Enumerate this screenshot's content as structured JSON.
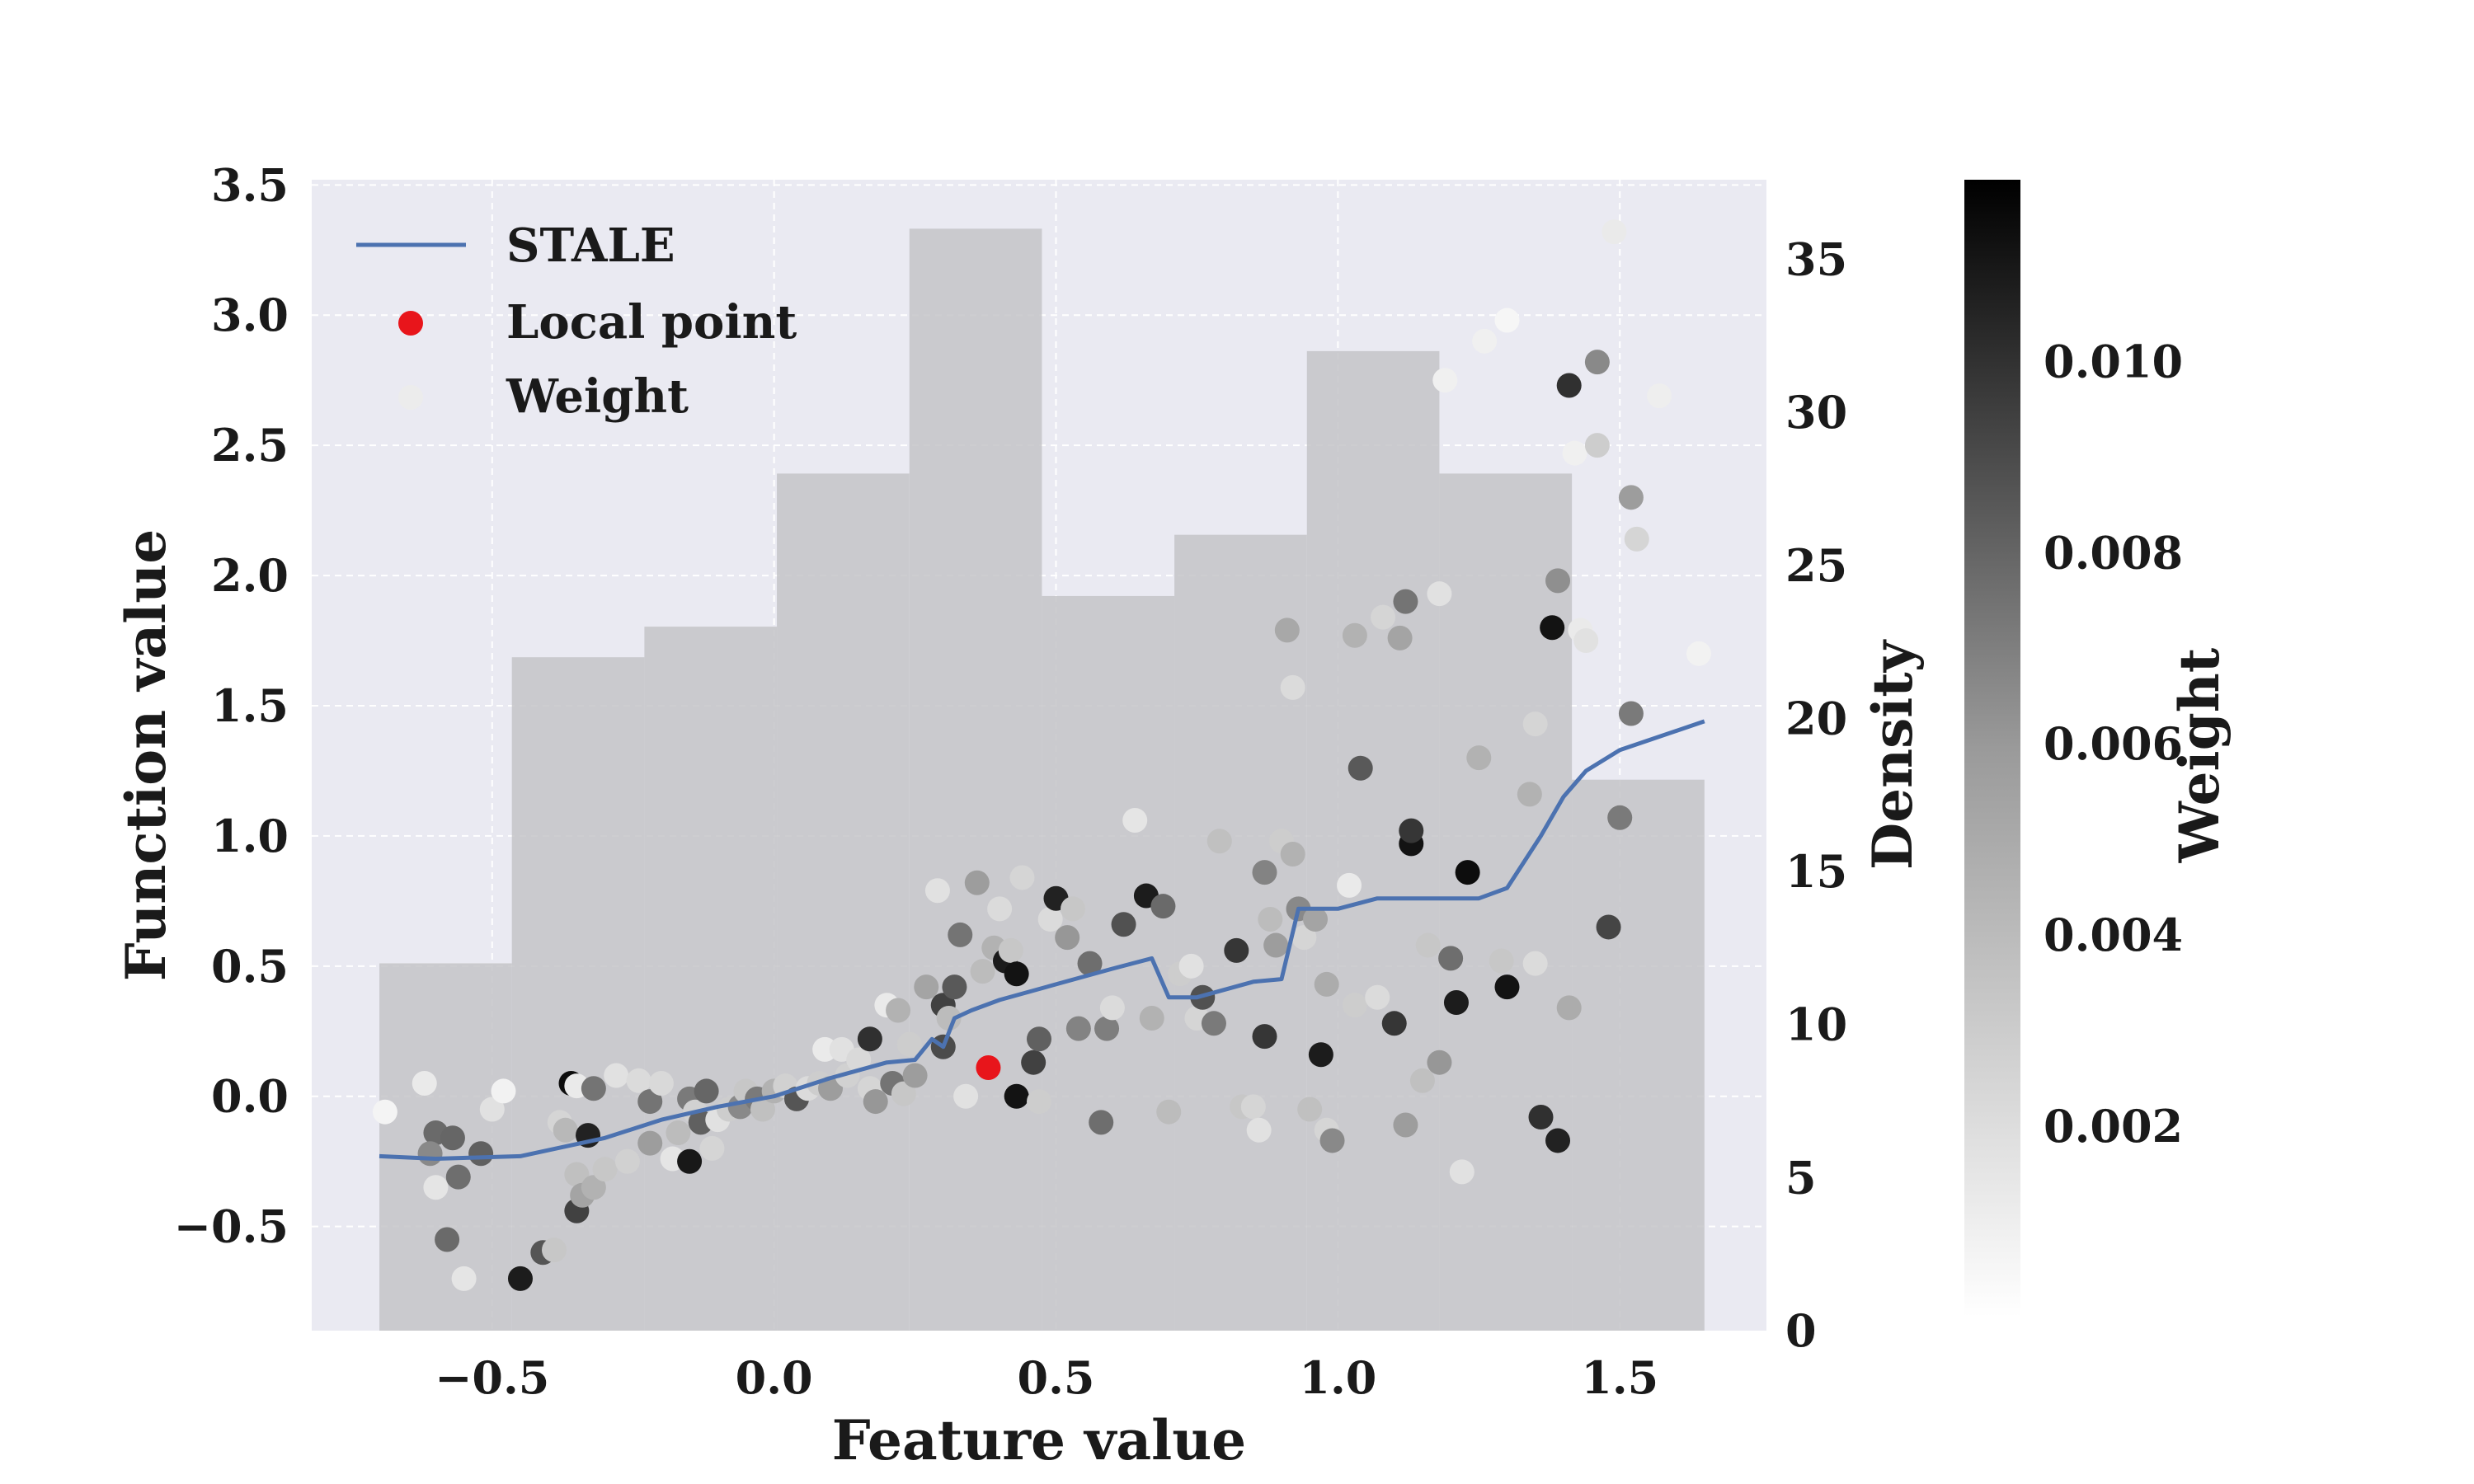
{
  "chart_data": {
    "type": "scatter",
    "xlabel": "Feature value",
    "ylabel": "Function value",
    "y2label": "Density",
    "colorbar_label": "Weight",
    "xlim": [
      -0.82,
      1.76
    ],
    "ylim": [
      -0.9,
      3.52
    ],
    "y2lim": [
      0,
      37.6
    ],
    "colorbar_range": [
      0,
      0.0119
    ],
    "grid": true,
    "legend_position": "top-left",
    "x_ticks": [
      -0.5,
      0.0,
      0.5,
      1.0,
      1.5
    ],
    "x_tick_labels": [
      "−0.5",
      "0.0",
      "0.5",
      "1.0",
      "1.5"
    ],
    "y_ticks": [
      -0.5,
      0.0,
      0.5,
      1.0,
      1.5,
      2.0,
      2.5,
      3.0,
      3.5
    ],
    "y_tick_labels": [
      "−0.5",
      "0.0",
      "0.5",
      "1.0",
      "1.5",
      "2.0",
      "2.5",
      "3.0",
      "3.5"
    ],
    "y2_ticks": [
      0,
      5,
      10,
      15,
      20,
      25,
      30,
      35
    ],
    "y2_tick_labels": [
      "0",
      "5",
      "10",
      "15",
      "20",
      "25",
      "30",
      "35"
    ],
    "colorbar_ticks": [
      0.002,
      0.004,
      0.006,
      0.008,
      0.01
    ],
    "colorbar_tick_labels": [
      "0.002",
      "0.004",
      "0.006",
      "0.008",
      "0.010"
    ],
    "legend": [
      {
        "kind": "line",
        "label": "STALE",
        "color": "#4c72b0"
      },
      {
        "kind": "dot",
        "label": "Local point",
        "color": "#e8151b"
      },
      {
        "kind": "dot",
        "label": "Weight",
        "color": "#ececec"
      }
    ],
    "histogram": {
      "color": "#c4c4c8",
      "bin_edges": [
        -0.7,
        -0.465,
        -0.23,
        0.005,
        0.24,
        0.475,
        0.71,
        0.945,
        1.18,
        1.415,
        1.65
      ],
      "counts": [
        12,
        22,
        23,
        28,
        36,
        24,
        26,
        32,
        28,
        18
      ]
    },
    "series": [
      {
        "name": "STALE",
        "color": "#4c72b0",
        "x": [
          -0.7,
          -0.6,
          -0.45,
          -0.3,
          -0.2,
          -0.1,
          0.0,
          0.1,
          0.2,
          0.25,
          0.28,
          0.3,
          0.32,
          0.35,
          0.4,
          0.5,
          0.6,
          0.67,
          0.7,
          0.75,
          0.85,
          0.9,
          0.93,
          1.0,
          1.07,
          1.15,
          1.2,
          1.25,
          1.3,
          1.36,
          1.4,
          1.44,
          1.5,
          1.65
        ],
        "y": [
          -0.23,
          -0.24,
          -0.23,
          -0.16,
          -0.09,
          -0.04,
          0.0,
          0.07,
          0.13,
          0.14,
          0.22,
          0.19,
          0.3,
          0.33,
          0.37,
          0.43,
          0.49,
          0.53,
          0.38,
          0.38,
          0.44,
          0.45,
          0.72,
          0.72,
          0.76,
          0.76,
          0.76,
          0.76,
          0.8,
          1.0,
          1.15,
          1.25,
          1.33,
          1.44
        ]
      }
    ],
    "local_point": {
      "x": 0.38,
      "y": 0.11,
      "color": "#e8151b"
    },
    "points": [
      {
        "x": -0.69,
        "y": -0.06,
        "w": 0.0003
      },
      {
        "x": -0.62,
        "y": 0.05,
        "w": 0.0008
      },
      {
        "x": -0.6,
        "y": -0.14,
        "w": 0.007
      },
      {
        "x": -0.61,
        "y": -0.22,
        "w": 0.0055
      },
      {
        "x": -0.6,
        "y": -0.35,
        "w": 0.001
      },
      {
        "x": -0.58,
        "y": -0.55,
        "w": 0.007
      },
      {
        "x": -0.57,
        "y": -0.16,
        "w": 0.0072
      },
      {
        "x": -0.56,
        "y": -0.31,
        "w": 0.0068
      },
      {
        "x": -0.55,
        "y": -0.7,
        "w": 0.001
      },
      {
        "x": -0.52,
        "y": -0.22,
        "w": 0.0075
      },
      {
        "x": -0.5,
        "y": -0.05,
        "w": 0.0012
      },
      {
        "x": -0.48,
        "y": 0.02,
        "w": 0.0004
      },
      {
        "x": -0.45,
        "y": -0.7,
        "w": 0.0108
      },
      {
        "x": -0.41,
        "y": -0.6,
        "w": 0.008
      },
      {
        "x": -0.39,
        "y": -0.59,
        "w": 0.0025
      },
      {
        "x": -0.38,
        "y": -0.1,
        "w": 0.0018
      },
      {
        "x": -0.37,
        "y": -0.13,
        "w": 0.0032
      },
      {
        "x": -0.36,
        "y": 0.05,
        "w": 0.0115
      },
      {
        "x": -0.35,
        "y": 0.04,
        "w": 0.0008
      },
      {
        "x": -0.35,
        "y": -0.3,
        "w": 0.0028
      },
      {
        "x": -0.35,
        "y": -0.44,
        "w": 0.009
      },
      {
        "x": -0.34,
        "y": -0.38,
        "w": 0.0042
      },
      {
        "x": -0.33,
        "y": -0.15,
        "w": 0.0105
      },
      {
        "x": -0.32,
        "y": 0.03,
        "w": 0.0065
      },
      {
        "x": -0.32,
        "y": -0.35,
        "w": 0.0035
      },
      {
        "x": -0.3,
        "y": -0.28,
        "w": 0.0025
      },
      {
        "x": -0.28,
        "y": 0.08,
        "w": 0.0012
      },
      {
        "x": -0.26,
        "y": -0.25,
        "w": 0.002
      },
      {
        "x": -0.24,
        "y": 0.06,
        "w": 0.0015
      },
      {
        "x": -0.22,
        "y": -0.02,
        "w": 0.0065
      },
      {
        "x": -0.22,
        "y": -0.18,
        "w": 0.0045
      },
      {
        "x": -0.2,
        "y": 0.05,
        "w": 0.0016
      },
      {
        "x": -0.18,
        "y": -0.24,
        "w": 0.001
      },
      {
        "x": -0.17,
        "y": -0.14,
        "w": 0.003
      },
      {
        "x": -0.15,
        "y": -0.01,
        "w": 0.0062
      },
      {
        "x": -0.15,
        "y": -0.25,
        "w": 0.011
      },
      {
        "x": -0.14,
        "y": -0.06,
        "w": 0.002
      },
      {
        "x": -0.13,
        "y": -0.1,
        "w": 0.0075
      },
      {
        "x": -0.12,
        "y": 0.02,
        "w": 0.0072
      },
      {
        "x": -0.11,
        "y": -0.2,
        "w": 0.0018
      },
      {
        "x": -0.1,
        "y": -0.09,
        "w": 0.0012
      },
      {
        "x": -0.08,
        "y": -0.05,
        "w": 0.0022
      },
      {
        "x": -0.06,
        "y": -0.04,
        "w": 0.0055
      },
      {
        "x": -0.05,
        "y": 0.02,
        "w": 0.0025
      },
      {
        "x": -0.03,
        "y": -0.01,
        "w": 0.0062
      },
      {
        "x": -0.02,
        "y": -0.05,
        "w": 0.0028
      },
      {
        "x": 0.0,
        "y": 0.02,
        "w": 0.0035
      },
      {
        "x": 0.02,
        "y": 0.04,
        "w": 0.002
      },
      {
        "x": 0.04,
        "y": -0.01,
        "w": 0.008
      },
      {
        "x": 0.06,
        "y": 0.03,
        "w": 0.0015
      },
      {
        "x": 0.08,
        "y": 0.05,
        "w": 0.0022
      },
      {
        "x": 0.09,
        "y": 0.18,
        "w": 0.0008
      },
      {
        "x": 0.1,
        "y": 0.03,
        "w": 0.0045
      },
      {
        "x": 0.12,
        "y": 0.18,
        "w": 0.0012
      },
      {
        "x": 0.13,
        "y": 0.08,
        "w": 0.002
      },
      {
        "x": 0.15,
        "y": 0.14,
        "w": 0.0016
      },
      {
        "x": 0.17,
        "y": 0.22,
        "w": 0.0098
      },
      {
        "x": 0.17,
        "y": 0.03,
        "w": 0.0018
      },
      {
        "x": 0.18,
        "y": -0.02,
        "w": 0.0048
      },
      {
        "x": 0.2,
        "y": 0.35,
        "w": 0.0008
      },
      {
        "x": 0.21,
        "y": 0.05,
        "w": 0.0065
      },
      {
        "x": 0.22,
        "y": 0.33,
        "w": 0.0035
      },
      {
        "x": 0.23,
        "y": 0.01,
        "w": 0.0025
      },
      {
        "x": 0.24,
        "y": 0.2,
        "w": 0.0022
      },
      {
        "x": 0.25,
        "y": 0.08,
        "w": 0.0045
      },
      {
        "x": 0.27,
        "y": 0.42,
        "w": 0.0042
      },
      {
        "x": 0.29,
        "y": 0.79,
        "w": 0.0012
      },
      {
        "x": 0.3,
        "y": 0.35,
        "w": 0.009
      },
      {
        "x": 0.3,
        "y": 0.19,
        "w": 0.0085
      },
      {
        "x": 0.31,
        "y": 0.3,
        "w": 0.003
      },
      {
        "x": 0.32,
        "y": 0.42,
        "w": 0.0078
      },
      {
        "x": 0.33,
        "y": 0.62,
        "w": 0.0065
      },
      {
        "x": 0.34,
        "y": 0.0,
        "w": 0.0012
      },
      {
        "x": 0.36,
        "y": 0.82,
        "w": 0.0045
      },
      {
        "x": 0.37,
        "y": 0.48,
        "w": 0.003
      },
      {
        "x": 0.39,
        "y": 0.57,
        "w": 0.0035
      },
      {
        "x": 0.4,
        "y": 0.72,
        "w": 0.0015
      },
      {
        "x": 0.41,
        "y": 0.52,
        "w": 0.0108
      },
      {
        "x": 0.42,
        "y": 0.56,
        "w": 0.0025
      },
      {
        "x": 0.43,
        "y": 0.47,
        "w": 0.0112
      },
      {
        "x": 0.43,
        "y": 0.0,
        "w": 0.0112
      },
      {
        "x": 0.44,
        "y": 0.84,
        "w": 0.0018
      },
      {
        "x": 0.46,
        "y": 0.13,
        "w": 0.009
      },
      {
        "x": 0.47,
        "y": 0.22,
        "w": 0.0075
      },
      {
        "x": 0.47,
        "y": -0.02,
        "w": 0.0022
      },
      {
        "x": 0.49,
        "y": 0.68,
        "w": 0.0015
      },
      {
        "x": 0.5,
        "y": 0.76,
        "w": 0.0105
      },
      {
        "x": 0.52,
        "y": 0.61,
        "w": 0.0048
      },
      {
        "x": 0.53,
        "y": 0.72,
        "w": 0.0025
      },
      {
        "x": 0.54,
        "y": 0.26,
        "w": 0.0058
      },
      {
        "x": 0.56,
        "y": 0.51,
        "w": 0.0068
      },
      {
        "x": 0.58,
        "y": -0.1,
        "w": 0.0068
      },
      {
        "x": 0.59,
        "y": 0.26,
        "w": 0.006
      },
      {
        "x": 0.6,
        "y": 0.34,
        "w": 0.0015
      },
      {
        "x": 0.62,
        "y": 0.66,
        "w": 0.0082
      },
      {
        "x": 0.64,
        "y": 1.06,
        "w": 0.001
      },
      {
        "x": 0.66,
        "y": 0.77,
        "w": 0.0108
      },
      {
        "x": 0.67,
        "y": 0.3,
        "w": 0.0035
      },
      {
        "x": 0.69,
        "y": 0.73,
        "w": 0.007
      },
      {
        "x": 0.7,
        "y": -0.06,
        "w": 0.003
      },
      {
        "x": 0.72,
        "y": 0.47,
        "w": 0.0022
      },
      {
        "x": 0.74,
        "y": 0.5,
        "w": 0.0012
      },
      {
        "x": 0.75,
        "y": 0.3,
        "w": 0.0018
      },
      {
        "x": 0.76,
        "y": 0.38,
        "w": 0.0082
      },
      {
        "x": 0.78,
        "y": 0.28,
        "w": 0.0062
      },
      {
        "x": 0.79,
        "y": 0.98,
        "w": 0.0028
      },
      {
        "x": 0.82,
        "y": 0.56,
        "w": 0.0095
      },
      {
        "x": 0.83,
        "y": -0.04,
        "w": 0.0025
      },
      {
        "x": 0.85,
        "y": -0.04,
        "w": 0.0018
      },
      {
        "x": 0.86,
        "y": -0.13,
        "w": 0.0012
      },
      {
        "x": 0.87,
        "y": 0.86,
        "w": 0.0058
      },
      {
        "x": 0.87,
        "y": 0.23,
        "w": 0.0095
      },
      {
        "x": 0.88,
        "y": 0.68,
        "w": 0.003
      },
      {
        "x": 0.89,
        "y": 0.58,
        "w": 0.0045
      },
      {
        "x": 0.9,
        "y": 0.98,
        "w": 0.0022
      },
      {
        "x": 0.91,
        "y": 1.79,
        "w": 0.004
      },
      {
        "x": 0.92,
        "y": 1.57,
        "w": 0.0015
      },
      {
        "x": 0.92,
        "y": 0.93,
        "w": 0.0035
      },
      {
        "x": 0.93,
        "y": 0.72,
        "w": 0.0055
      },
      {
        "x": 0.94,
        "y": 0.61,
        "w": 0.0018
      },
      {
        "x": 0.95,
        "y": -0.05,
        "w": 0.0028
      },
      {
        "x": 0.96,
        "y": 0.68,
        "w": 0.0042
      },
      {
        "x": 0.97,
        "y": 0.16,
        "w": 0.0108
      },
      {
        "x": 0.98,
        "y": 0.43,
        "w": 0.0038
      },
      {
        "x": 0.98,
        "y": -0.13,
        "w": 0.0018
      },
      {
        "x": 0.99,
        "y": -0.17,
        "w": 0.0055
      },
      {
        "x": 1.02,
        "y": 0.81,
        "w": 0.0008
      },
      {
        "x": 1.03,
        "y": 1.77,
        "w": 0.0035
      },
      {
        "x": 1.03,
        "y": 0.35,
        "w": 0.0022
      },
      {
        "x": 1.04,
        "y": 1.26,
        "w": 0.0078
      },
      {
        "x": 1.07,
        "y": 0.38,
        "w": 0.0015
      },
      {
        "x": 1.08,
        "y": 1.84,
        "w": 0.0018
      },
      {
        "x": 1.1,
        "y": 0.28,
        "w": 0.0095
      },
      {
        "x": 1.11,
        "y": 1.76,
        "w": 0.0042
      },
      {
        "x": 1.12,
        "y": 1.9,
        "w": 0.0065
      },
      {
        "x": 1.12,
        "y": -0.11,
        "w": 0.0045
      },
      {
        "x": 1.13,
        "y": 0.97,
        "w": 0.0112
      },
      {
        "x": 1.13,
        "y": 1.02,
        "w": 0.0095
      },
      {
        "x": 1.15,
        "y": 0.06,
        "w": 0.0028
      },
      {
        "x": 1.16,
        "y": 0.58,
        "w": 0.0025
      },
      {
        "x": 1.18,
        "y": 0.13,
        "w": 0.0048
      },
      {
        "x": 1.18,
        "y": 1.93,
        "w": 0.0012
      },
      {
        "x": 1.19,
        "y": 2.75,
        "w": 0.0005
      },
      {
        "x": 1.2,
        "y": 0.53,
        "w": 0.0068
      },
      {
        "x": 1.21,
        "y": 0.36,
        "w": 0.0108
      },
      {
        "x": 1.22,
        "y": -0.29,
        "w": 0.0012
      },
      {
        "x": 1.23,
        "y": 0.86,
        "w": 0.0115
      },
      {
        "x": 1.25,
        "y": 1.3,
        "w": 0.0035
      },
      {
        "x": 1.26,
        "y": 2.9,
        "w": 0.0005
      },
      {
        "x": 1.29,
        "y": 0.52,
        "w": 0.0025
      },
      {
        "x": 1.3,
        "y": 0.42,
        "w": 0.0112
      },
      {
        "x": 1.3,
        "y": 2.98,
        "w": 0.0002
      },
      {
        "x": 1.34,
        "y": 1.16,
        "w": 0.0035
      },
      {
        "x": 1.35,
        "y": 1.43,
        "w": 0.0018
      },
      {
        "x": 1.35,
        "y": 0.51,
        "w": 0.0015
      },
      {
        "x": 1.36,
        "y": -0.08,
        "w": 0.0098
      },
      {
        "x": 1.38,
        "y": 1.8,
        "w": 0.0112
      },
      {
        "x": 1.39,
        "y": 1.98,
        "w": 0.0052
      },
      {
        "x": 1.39,
        "y": -0.17,
        "w": 0.0105
      },
      {
        "x": 1.41,
        "y": 2.73,
        "w": 0.0098
      },
      {
        "x": 1.41,
        "y": 0.34,
        "w": 0.0038
      },
      {
        "x": 1.42,
        "y": 2.47,
        "w": 0.0005
      },
      {
        "x": 1.43,
        "y": 1.79,
        "w": 0.0008
      },
      {
        "x": 1.44,
        "y": 1.75,
        "w": 0.0012
      },
      {
        "x": 1.46,
        "y": 2.82,
        "w": 0.0055
      },
      {
        "x": 1.46,
        "y": 2.5,
        "w": 0.0022
      },
      {
        "x": 1.48,
        "y": 0.65,
        "w": 0.0088
      },
      {
        "x": 1.49,
        "y": 3.32,
        "w": 0.0008
      },
      {
        "x": 1.5,
        "y": 1.07,
        "w": 0.0062
      },
      {
        "x": 1.52,
        "y": 2.3,
        "w": 0.0045
      },
      {
        "x": 1.52,
        "y": 1.47,
        "w": 0.0062
      },
      {
        "x": 1.53,
        "y": 2.14,
        "w": 0.0018
      },
      {
        "x": 1.57,
        "y": 2.69,
        "w": 0.0006
      },
      {
        "x": 1.64,
        "y": 1.7,
        "w": 0.0004
      }
    ]
  }
}
